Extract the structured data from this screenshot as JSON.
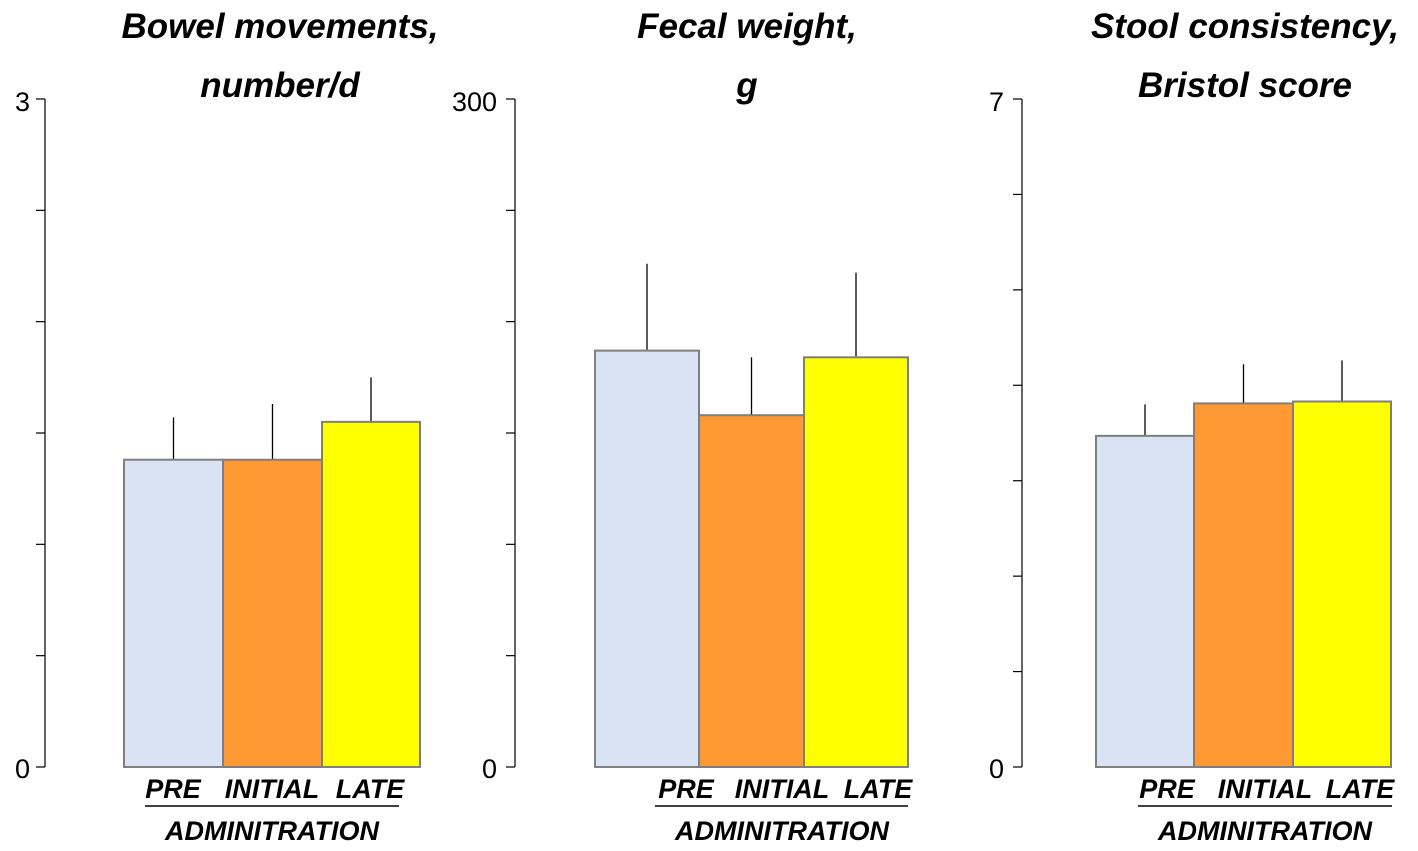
{
  "chart_data": [
    {
      "type": "bar",
      "title_lines": [
        "Bowel movements,",
        "number/d"
      ],
      "categories": [
        "PRE",
        "INITIAL",
        "LATE"
      ],
      "group_label": "ADMINITRATION",
      "ylim": [
        0,
        3
      ],
      "y_tick_labels": [
        "0",
        "3"
      ],
      "minor_ticks": 6,
      "values": [
        1.38,
        1.38,
        1.55
      ],
      "errors": [
        0.19,
        0.25,
        0.2
      ],
      "colors": [
        "#dae3f3",
        "#ff9933",
        "#ffff00"
      ]
    },
    {
      "type": "bar",
      "title_lines": [
        "Fecal weight,",
        "g"
      ],
      "categories": [
        "PRE",
        "INITIAL",
        "LATE"
      ],
      "group_label": "ADMINITRATION",
      "ylim": [
        0,
        300
      ],
      "y_tick_labels": [
        "0",
        "300"
      ],
      "minor_ticks": 6,
      "values": [
        187,
        158,
        184
      ],
      "errors": [
        39,
        26,
        38
      ],
      "colors": [
        "#dae3f3",
        "#ff9933",
        "#ffff00"
      ]
    },
    {
      "type": "bar",
      "title_lines": [
        "Stool consistency,",
        "Bristol score"
      ],
      "categories": [
        "PRE",
        "INITIAL",
        "LATE"
      ],
      "group_label": "ADMINITRATION",
      "ylim": [
        0,
        7
      ],
      "y_tick_labels": [
        "0",
        "7"
      ],
      "minor_ticks": 7,
      "values": [
        3.47,
        3.81,
        3.83
      ],
      "errors": [
        0.33,
        0.41,
        0.43
      ],
      "colors": [
        "#dae3f3",
        "#ff9933",
        "#ffff00"
      ]
    }
  ]
}
